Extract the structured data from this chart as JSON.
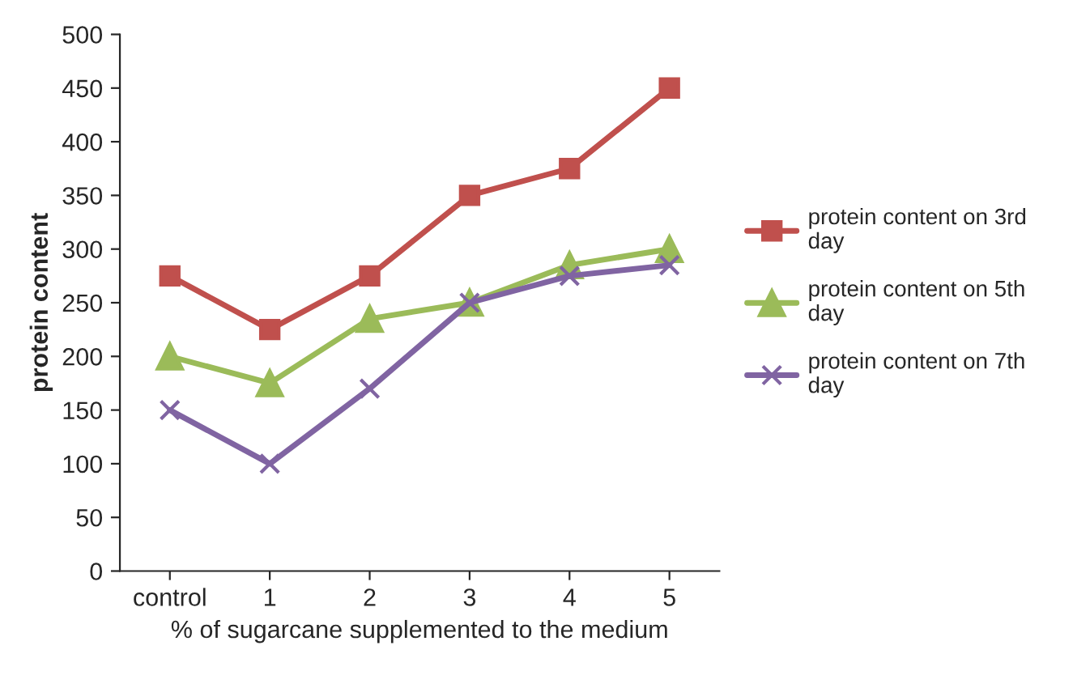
{
  "chart_data": {
    "type": "line",
    "categories": [
      "control",
      "1",
      "2",
      "3",
      "4",
      "5"
    ],
    "xlabel": "% of sugarcane supplemented to the medium",
    "ylabel": "protein content",
    "ylim": [
      0,
      500
    ],
    "yticks": [
      0,
      50,
      100,
      150,
      200,
      250,
      300,
      350,
      400,
      450,
      500
    ],
    "grid": false,
    "legend": "right",
    "series": [
      {
        "name": "protein content on 3rd day",
        "color": "#c0504d",
        "marker": "square",
        "values": [
          275,
          225,
          275,
          350,
          375,
          450
        ]
      },
      {
        "name": "protein content on 5th day",
        "color": "#9bbb59",
        "marker": "triangle",
        "values": [
          200,
          175,
          235,
          250,
          285,
          300
        ]
      },
      {
        "name": "protein content on 7th day",
        "color": "#8064a2",
        "marker": "cross",
        "values": [
          150,
          100,
          170,
          250,
          275,
          285
        ]
      }
    ]
  }
}
